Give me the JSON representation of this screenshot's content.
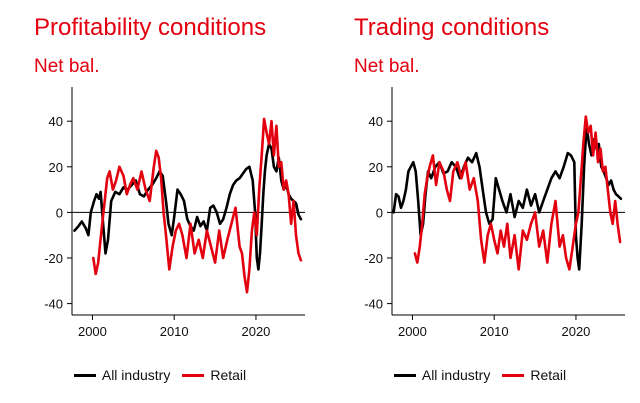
{
  "colors": {
    "all_industry": "#000000",
    "retail": "#e3000f",
    "title": "#e3000f"
  },
  "chart_data": [
    {
      "type": "line",
      "title": "Profitability conditions",
      "subtitle": "Net bal.",
      "xlim": [
        1997.5,
        2026
      ],
      "ylim": [
        -45,
        55
      ],
      "yticks": [
        40,
        20,
        0,
        -20,
        -40
      ],
      "ytick_labels": [
        "40",
        "20",
        "0",
        "-20",
        "-40"
      ],
      "xticks": [
        2000,
        2010,
        2020
      ],
      "xtick_labels": [
        "2000",
        "2010",
        "2020"
      ],
      "legend": [
        "All industry",
        "Retail"
      ],
      "series": [
        {
          "name": "All industry",
          "x": [
            1997.8,
            1998.3,
            1998.7,
            1999.2,
            1999.5,
            1999.8,
            2000.2,
            2000.5,
            2000.8,
            2001.0,
            2001.3,
            2001.6,
            2001.9,
            2002.3,
            2002.8,
            2003.3,
            2003.8,
            2004.3,
            2004.8,
            2005.3,
            2005.8,
            2006.3,
            2006.8,
            2007.3,
            2007.8,
            2008.2,
            2008.6,
            2009.0,
            2009.3,
            2009.7,
            2010.0,
            2010.4,
            2010.8,
            2011.2,
            2011.6,
            2012.0,
            2012.4,
            2012.8,
            2013.2,
            2013.6,
            2014.0,
            2014.4,
            2014.8,
            2015.2,
            2015.6,
            2016.0,
            2016.4,
            2016.8,
            2017.2,
            2017.6,
            2018.0,
            2018.4,
            2018.8,
            2019.2,
            2019.6,
            2019.9,
            2020.1,
            2020.3,
            2020.5,
            2020.7,
            2020.9,
            2021.1,
            2021.3,
            2021.6,
            2021.9,
            2022.2,
            2022.5,
            2022.8,
            2023.1,
            2023.4,
            2023.7,
            2024.0,
            2024.3,
            2024.6,
            2024.9,
            2025.2,
            2025.5
          ],
          "y": [
            -8,
            -6,
            -4,
            -7,
            -10,
            0,
            5,
            8,
            6,
            9,
            -5,
            -18,
            -12,
            5,
            9,
            8,
            11,
            10,
            12,
            14,
            8,
            7,
            10,
            12,
            15,
            18,
            16,
            5,
            -5,
            -10,
            -2,
            10,
            8,
            5,
            -3,
            -6,
            -8,
            -2,
            -6,
            -4,
            -8,
            2,
            3,
            0,
            -5,
            -3,
            2,
            8,
            12,
            14,
            15,
            17,
            19,
            20,
            14,
            0,
            -20,
            -25,
            -18,
            -5,
            8,
            18,
            25,
            30,
            28,
            20,
            18,
            24,
            14,
            10,
            12,
            8,
            6,
            5,
            4,
            -1,
            -3
          ]
        },
        {
          "name": "Retail",
          "x": [
            2000.1,
            2000.4,
            2000.7,
            2000.9,
            2001.2,
            2001.5,
            2001.8,
            2002.1,
            2002.5,
            2002.9,
            2003.3,
            2003.8,
            2004.2,
            2004.6,
            2005.0,
            2005.5,
            2006.0,
            2006.5,
            2007.0,
            2007.5,
            2007.8,
            2008.1,
            2008.4,
            2008.7,
            2009.0,
            2009.4,
            2009.8,
            2010.2,
            2010.6,
            2011.0,
            2011.5,
            2012.0,
            2012.5,
            2013.0,
            2013.5,
            2014.0,
            2014.5,
            2015.0,
            2015.5,
            2016.0,
            2016.5,
            2017.0,
            2017.5,
            2018.0,
            2018.3,
            2018.6,
            2018.9,
            2019.2,
            2019.5,
            2019.8,
            2020.1,
            2020.4,
            2020.7,
            2021.0,
            2021.3,
            2021.6,
            2021.9,
            2022.2,
            2022.5,
            2022.8,
            2023.1,
            2023.4,
            2023.7,
            2024.0,
            2024.3,
            2024.6,
            2024.9,
            2025.2,
            2025.5
          ],
          "y": [
            -20,
            -27,
            -22,
            -15,
            -5,
            5,
            15,
            18,
            10,
            14,
            20,
            16,
            8,
            12,
            15,
            10,
            18,
            10,
            5,
            20,
            27,
            24,
            15,
            0,
            -10,
            -25,
            -15,
            -8,
            -5,
            -10,
            -20,
            -5,
            -18,
            -12,
            -20,
            -8,
            -15,
            -22,
            -8,
            -20,
            -12,
            -5,
            2,
            -15,
            -18,
            -28,
            -35,
            -25,
            -8,
            0,
            -10,
            10,
            25,
            41,
            35,
            30,
            40,
            25,
            38,
            20,
            22,
            10,
            14,
            8,
            -5,
            5,
            -10,
            -18,
            -21
          ]
        }
      ]
    },
    {
      "type": "line",
      "title": "Trading conditions",
      "subtitle": "Net bal.",
      "xlim": [
        1997.5,
        2026
      ],
      "ylim": [
        -45,
        55
      ],
      "yticks": [
        40,
        20,
        0,
        -20,
        -40
      ],
      "ytick_labels": [
        "40",
        "20",
        "0",
        "-20",
        "-40"
      ],
      "xticks": [
        2000,
        2010,
        2020
      ],
      "xtick_labels": [
        "2000",
        "2010",
        "2020"
      ],
      "legend": [
        "All industry",
        "Retail"
      ],
      "series": [
        {
          "name": "All industry",
          "x": [
            1997.7,
            1998.0,
            1998.3,
            1998.6,
            1998.9,
            1999.2,
            1999.5,
            1999.8,
            2000.1,
            2000.4,
            2000.7,
            2001.0,
            2001.3,
            2001.6,
            2001.9,
            2002.3,
            2002.8,
            2003.3,
            2003.8,
            2004.3,
            2004.8,
            2005.3,
            2005.8,
            2006.3,
            2006.8,
            2007.3,
            2007.8,
            2008.2,
            2008.6,
            2009.0,
            2009.4,
            2009.8,
            2010.2,
            2010.6,
            2011.0,
            2011.5,
            2012.0,
            2012.5,
            2013.0,
            2013.5,
            2014.0,
            2014.5,
            2015.0,
            2015.5,
            2016.0,
            2016.5,
            2017.0,
            2017.5,
            2018.0,
            2018.5,
            2019.0,
            2019.4,
            2019.8,
            2020.0,
            2020.2,
            2020.4,
            2020.7,
            2021.0,
            2021.3,
            2021.6,
            2021.9,
            2022.2,
            2022.5,
            2022.8,
            2023.1,
            2023.4,
            2023.7,
            2024.0,
            2024.3,
            2024.6,
            2024.9,
            2025.2,
            2025.5
          ],
          "y": [
            0,
            8,
            7,
            2,
            5,
            10,
            18,
            20,
            22,
            18,
            5,
            -10,
            -5,
            8,
            18,
            15,
            20,
            22,
            17,
            18,
            22,
            20,
            15,
            20,
            24,
            22,
            26,
            20,
            10,
            0,
            -5,
            -3,
            15,
            10,
            5,
            0,
            8,
            -2,
            5,
            2,
            10,
            3,
            8,
            0,
            5,
            10,
            15,
            18,
            15,
            20,
            26,
            25,
            22,
            -10,
            -20,
            -25,
            -5,
            20,
            38,
            30,
            25,
            32,
            28,
            30,
            20,
            18,
            15,
            12,
            14,
            10,
            8,
            7,
            6
          ]
        },
        {
          "name": "Retail",
          "x": [
            2000.3,
            2000.6,
            2000.9,
            2001.2,
            2001.5,
            2001.8,
            2002.1,
            2002.5,
            2002.9,
            2003.3,
            2003.8,
            2004.2,
            2004.6,
            2005.0,
            2005.5,
            2006.0,
            2006.5,
            2007.0,
            2007.5,
            2008.0,
            2008.4,
            2008.8,
            2009.2,
            2009.6,
            2010.0,
            2010.4,
            2010.8,
            2011.2,
            2011.6,
            2012.0,
            2012.5,
            2013.0,
            2013.5,
            2014.0,
            2014.5,
            2015.0,
            2015.5,
            2016.0,
            2016.5,
            2017.0,
            2017.5,
            2018.0,
            2018.4,
            2018.8,
            2019.2,
            2019.6,
            2020.0,
            2020.3,
            2020.6,
            2020.9,
            2021.2,
            2021.5,
            2021.8,
            2022.1,
            2022.4,
            2022.7,
            2023.0,
            2023.3,
            2023.6,
            2023.9,
            2024.2,
            2024.5,
            2024.8,
            2025.1,
            2025.4
          ],
          "y": [
            -18,
            -22,
            -15,
            -5,
            8,
            15,
            20,
            25,
            12,
            22,
            18,
            10,
            5,
            18,
            22,
            15,
            22,
            10,
            15,
            5,
            -12,
            -22,
            -10,
            -5,
            -12,
            -18,
            -8,
            -15,
            -5,
            -20,
            -10,
            -25,
            -8,
            -12,
            -5,
            0,
            -15,
            -8,
            -22,
            -5,
            5,
            -15,
            -10,
            -20,
            -25,
            -15,
            -5,
            0,
            15,
            30,
            42,
            35,
            38,
            25,
            35,
            22,
            28,
            18,
            20,
            10,
            0,
            -5,
            5,
            -5,
            -13
          ]
        }
      ]
    }
  ]
}
